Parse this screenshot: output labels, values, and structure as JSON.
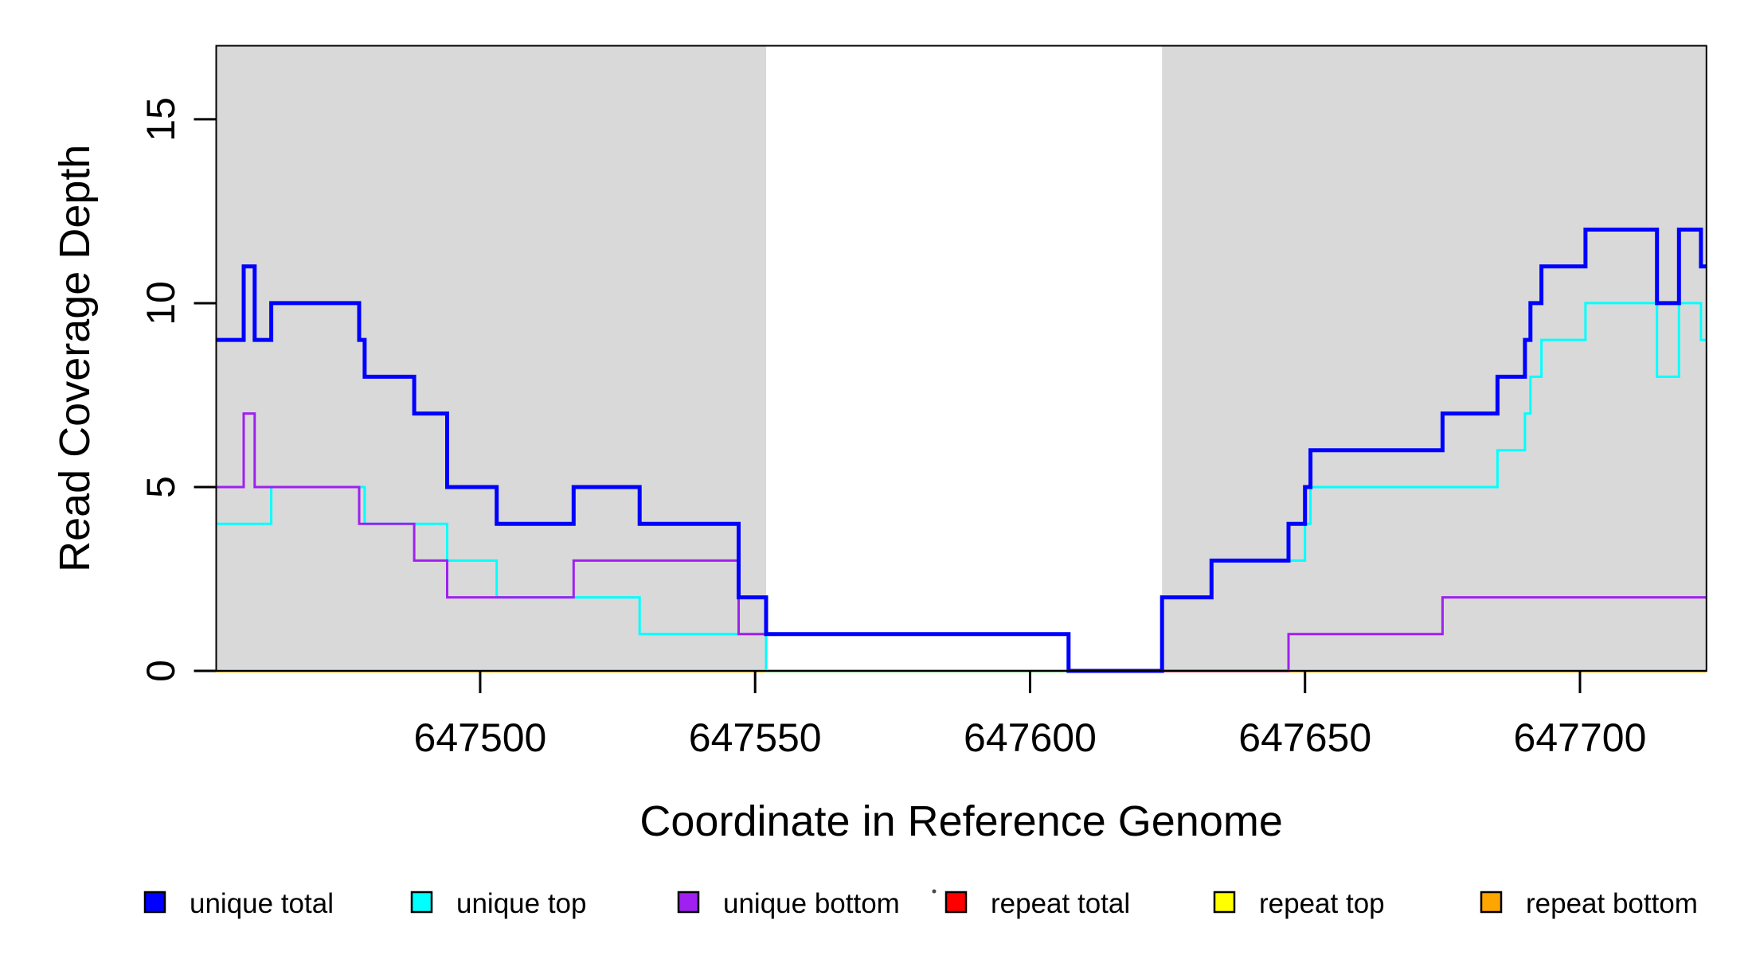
{
  "chart_data": {
    "type": "line",
    "subtype": "step-after",
    "title": "",
    "xlabel": "Coordinate in Reference Genome",
    "ylabel": "Read Coverage Depth",
    "xlim": [
      647452,
      647723
    ],
    "ylim": [
      0,
      17
    ],
    "x_ticks": [
      647500,
      647550,
      647600,
      647650,
      647700
    ],
    "y_ticks": [
      0,
      5,
      10,
      15
    ],
    "grid": false,
    "legend_position": "bottom",
    "plot_background": "#ffffff",
    "shaded_region_color": "#d9d9d9",
    "box_color": "#000000",
    "shaded_regions": [
      {
        "x0": 647452,
        "x1": 647552
      },
      {
        "x0": 647624,
        "x1": 647723
      }
    ],
    "series": [
      {
        "name": "repeat total",
        "color": "#ff0000",
        "width": 3,
        "points": [
          [
            647452,
            0
          ]
        ]
      },
      {
        "name": "repeat top",
        "color": "#ffff00",
        "width": 3,
        "points": [
          [
            647452,
            0
          ]
        ]
      },
      {
        "name": "repeat bottom",
        "color": "#ffa500",
        "width": 4,
        "points": [
          [
            647452,
            0
          ]
        ]
      },
      {
        "name": "unique top",
        "color": "#00ffff",
        "width": 3,
        "points": [
          [
            647452,
            4
          ],
          [
            647462,
            5
          ],
          [
            647479,
            4
          ],
          [
            647494,
            3
          ],
          [
            647503,
            2
          ],
          [
            647529,
            1
          ],
          [
            647552,
            0
          ],
          [
            647624,
            2
          ],
          [
            647633,
            3
          ],
          [
            647650,
            4
          ],
          [
            647651,
            5
          ],
          [
            647685,
            6
          ],
          [
            647690,
            7
          ],
          [
            647691,
            8
          ],
          [
            647693,
            9
          ],
          [
            647701,
            10
          ],
          [
            647714,
            8
          ],
          [
            647718,
            10
          ],
          [
            647722,
            9
          ]
        ]
      },
      {
        "name": "unique bottom",
        "color": "#a020f0",
        "width": 3,
        "points": [
          [
            647452,
            5
          ],
          [
            647457,
            7
          ],
          [
            647459,
            5
          ],
          [
            647478,
            4
          ],
          [
            647488,
            3
          ],
          [
            647494,
            2
          ],
          [
            647517,
            3
          ],
          [
            647547,
            1
          ],
          [
            647607,
            0
          ],
          [
            647647,
            1
          ],
          [
            647675,
            2
          ]
        ]
      },
      {
        "name": "unique total",
        "color": "#0000ff",
        "width": 5,
        "points": [
          [
            647452,
            9
          ],
          [
            647457,
            11
          ],
          [
            647459,
            9
          ],
          [
            647462,
            10
          ],
          [
            647478,
            9
          ],
          [
            647479,
            8
          ],
          [
            647488,
            7
          ],
          [
            647494,
            5
          ],
          [
            647503,
            4
          ],
          [
            647517,
            5
          ],
          [
            647529,
            4
          ],
          [
            647547,
            2
          ],
          [
            647552,
            1
          ],
          [
            647607,
            0
          ],
          [
            647624,
            2
          ],
          [
            647633,
            3
          ],
          [
            647647,
            4
          ],
          [
            647650,
            5
          ],
          [
            647651,
            6
          ],
          [
            647675,
            7
          ],
          [
            647685,
            8
          ],
          [
            647690,
            9
          ],
          [
            647691,
            10
          ],
          [
            647693,
            11
          ],
          [
            647701,
            12
          ],
          [
            647714,
            10
          ],
          [
            647718,
            12
          ],
          [
            647722,
            11
          ]
        ]
      }
    ],
    "legend": [
      {
        "label": "unique total",
        "color": "#0000ff"
      },
      {
        "label": "unique top",
        "color": "#00ffff"
      },
      {
        "label": "unique bottom",
        "color": "#a020f0"
      },
      {
        "label": "repeat total",
        "color": "#ff0000"
      },
      {
        "label": "repeat top",
        "color": "#ffff00"
      },
      {
        "label": "repeat bottom",
        "color": "#ffa500"
      }
    ],
    "stray_dot": {
      "present": true,
      "color": "#4a4a4a"
    }
  }
}
